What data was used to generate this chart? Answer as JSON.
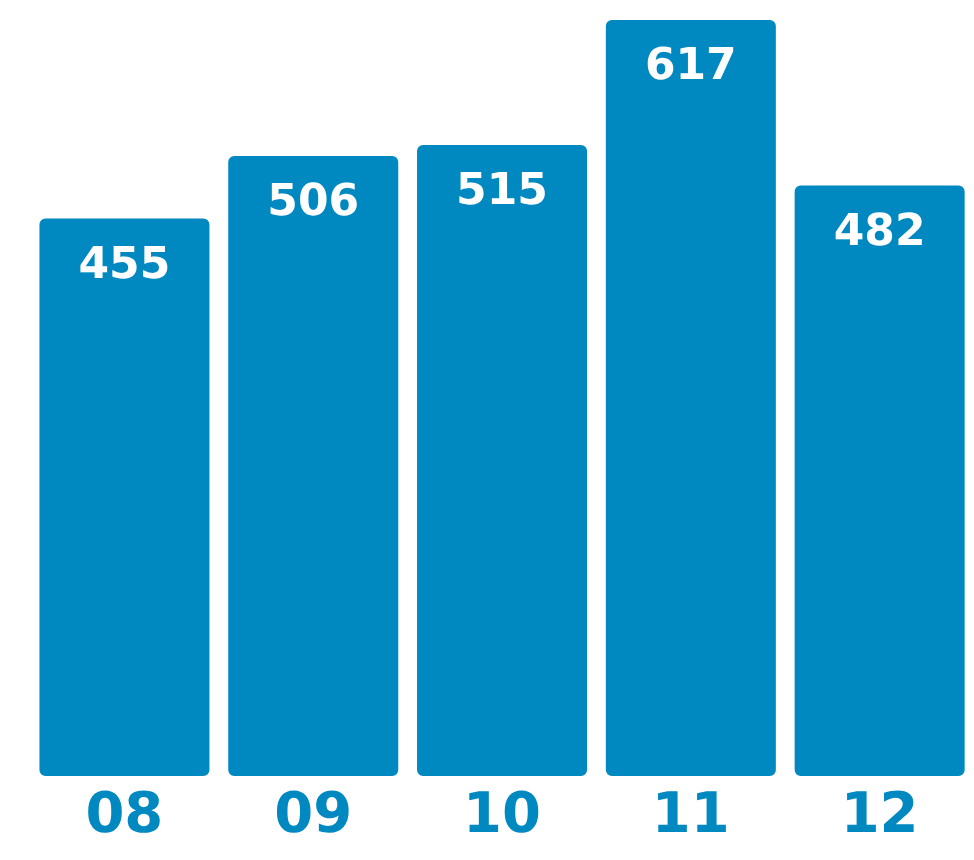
{
  "chart_data": {
    "type": "bar",
    "categories": [
      "08",
      "09",
      "10",
      "11",
      "12"
    ],
    "values": [
      455,
      506,
      515,
      617,
      482
    ],
    "color": "#0088c0",
    "data_labels": true,
    "grid": false,
    "legend": false
  }
}
